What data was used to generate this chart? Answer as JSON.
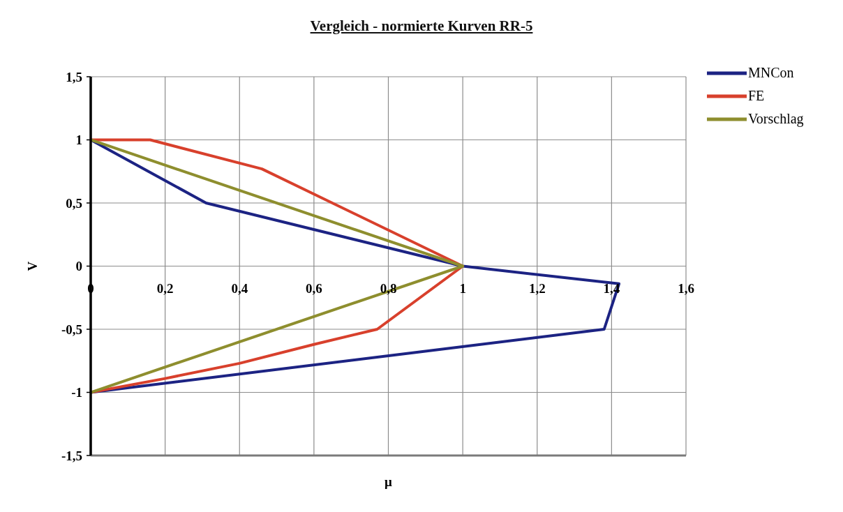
{
  "chart_data": {
    "type": "line",
    "title": "Vergleich - normierte Kurven RR-5",
    "xlabel": "μ",
    "ylabel": "V",
    "xlim": [
      0,
      1.6
    ],
    "xticks": [
      0,
      {
        "value": 0.2,
        "label": "0,2"
      },
      {
        "value": 0.4,
        "label": "0,4"
      },
      {
        "value": 0.6,
        "label": "0,6"
      },
      {
        "value": 0.8,
        "label": "0,8"
      },
      1,
      {
        "value": 1.2,
        "label": "1,2"
      },
      {
        "value": 1.4,
        "label": "1,4"
      },
      {
        "value": 1.6,
        "label": "1,6"
      }
    ],
    "ylim": [
      -1.5,
      1.5
    ],
    "yticks": [
      {
        "value": -1.5,
        "label": "-1,5"
      },
      -1,
      {
        "value": -0.5,
        "label": "-0,5"
      },
      0,
      {
        "value": 0.5,
        "label": "0,5"
      },
      1,
      {
        "value": 1.5,
        "label": "1,5"
      }
    ],
    "grid": true,
    "legend": "top right",
    "marker": "none",
    "line_style": "solid",
    "series": [
      {
        "name": "MNCon",
        "color": "#1c2383",
        "x": [
          0,
          0.31,
          1,
          1.42,
          1.38,
          0
        ],
        "values": [
          1,
          0.5,
          0,
          -0.14,
          -0.5,
          -1
        ]
      },
      {
        "name": "FE",
        "color": "#d8402c",
        "x": [
          0,
          0.16,
          0.46,
          1,
          0.77,
          0.6,
          0.4,
          0.2,
          0
        ],
        "values": [
          1,
          1,
          0.77,
          0,
          -0.5,
          -0.62,
          -0.77,
          -0.89,
          -1
        ]
      },
      {
        "name": "Vorschlag",
        "color": "#8e8e2e",
        "x": [
          0,
          1,
          0
        ],
        "values": [
          1,
          0,
          -1
        ]
      }
    ]
  }
}
